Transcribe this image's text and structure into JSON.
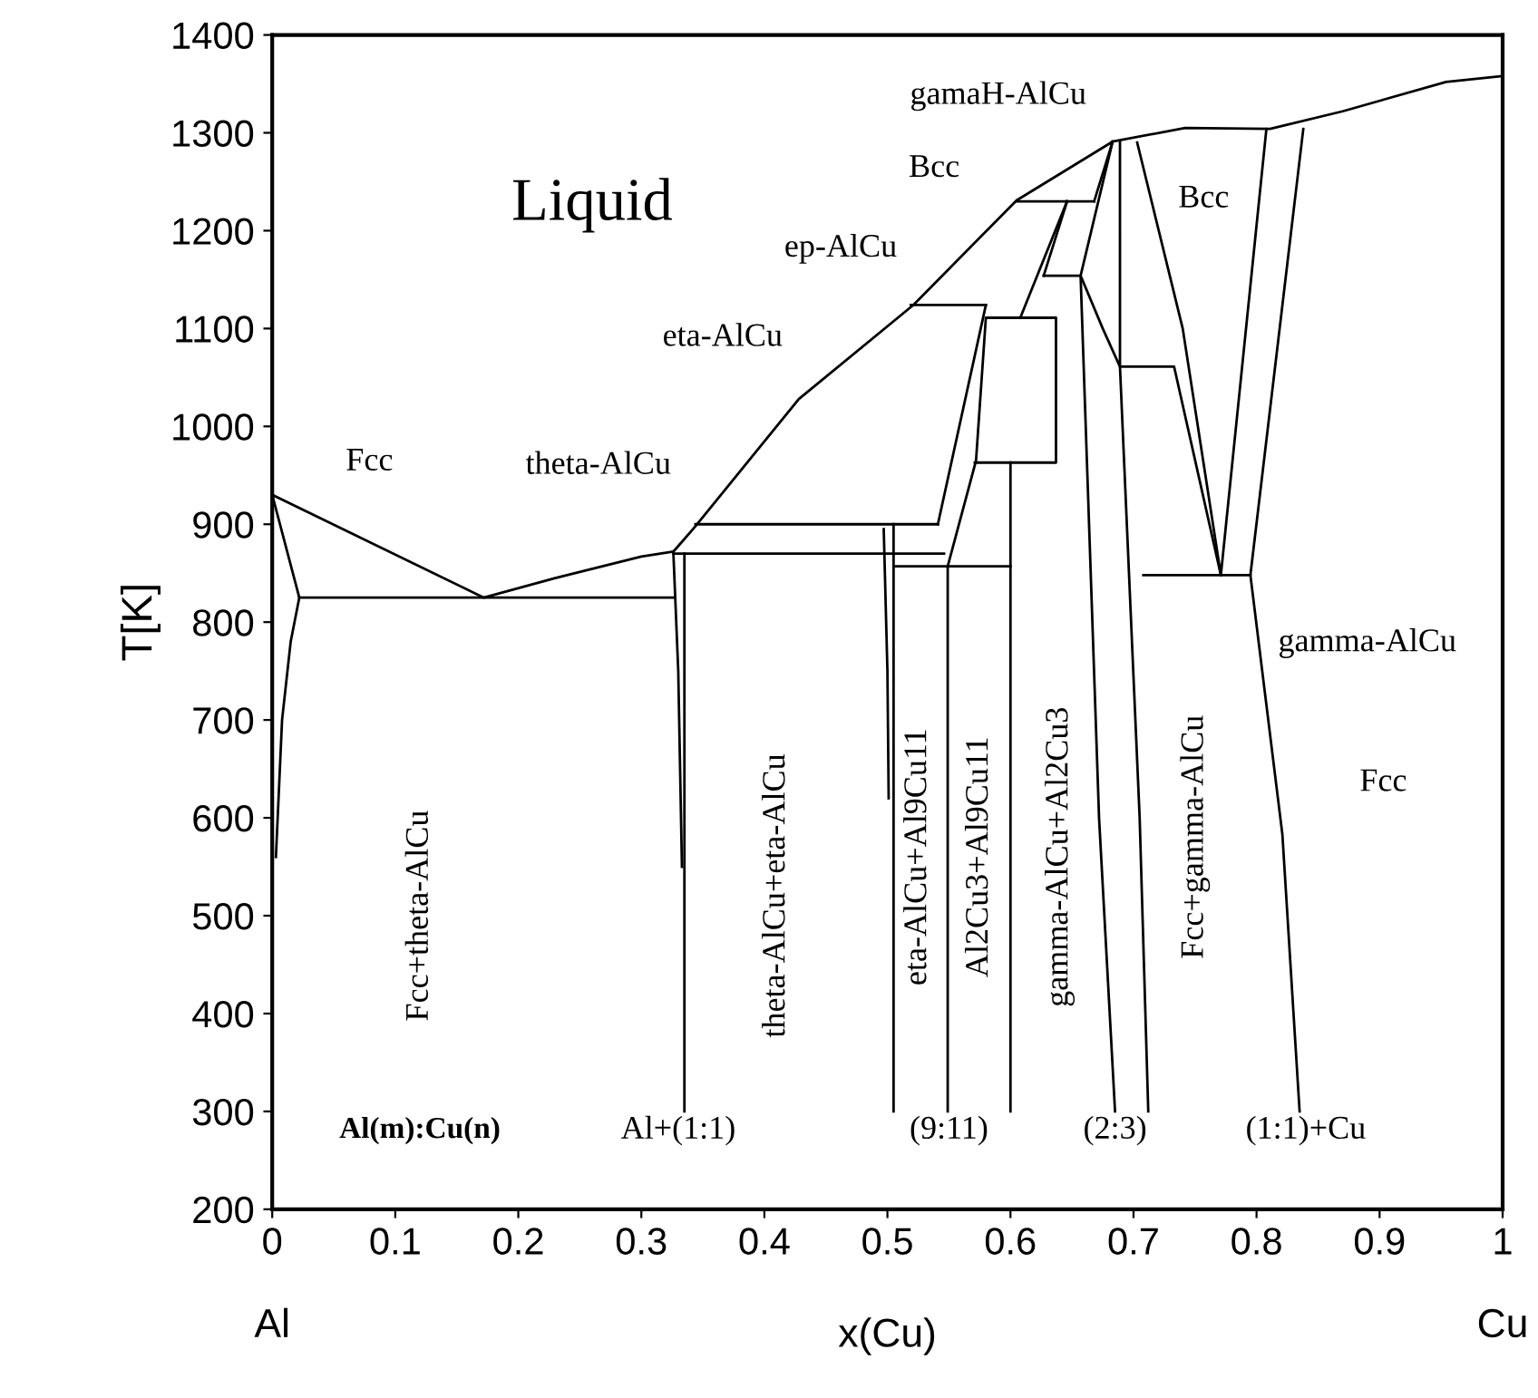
{
  "chart_data": {
    "type": "line",
    "xlabel": "x(Cu)",
    "ylabel": "T[K]",
    "xlim": [
      0,
      1
    ],
    "ylim": [
      200,
      1400
    ],
    "xticks": [
      0,
      0.1,
      0.2,
      0.3,
      0.4,
      0.5,
      0.6,
      0.7,
      0.8,
      0.9,
      1
    ],
    "yticks": [
      200,
      300,
      400,
      500,
      600,
      700,
      800,
      900,
      1000,
      1100,
      1200,
      1300,
      1400
    ],
    "marker": "none",
    "line_style": "solid",
    "series": [
      {
        "color": "#000000",
        "x": [
          0.003,
          0.008,
          0.015,
          0.022,
          0,
          0.172,
          0.23,
          0.3,
          0.326,
          0.344,
          0.428,
          0.521,
          0.605,
          0.683,
          0.742,
          0.811,
          0.87,
          0.954,
          1.0
        ],
        "values": [
          560,
          700,
          780,
          825,
          930,
          825,
          845,
          867,
          872,
          898,
          1028,
          1124,
          1231,
          1291,
          1305,
          1304,
          1322,
          1352,
          1358
        ]
      },
      {
        "color": "#000000",
        "x": [
          0.022,
          0.326
        ],
        "values": [
          825,
          825
        ]
      },
      {
        "color": "#000000",
        "x": [
          0.326,
          0.33,
          0.333
        ],
        "values": [
          872,
          750,
          550
        ]
      },
      {
        "color": "#000000",
        "x": [
          0.335,
          0.335
        ],
        "values": [
          870,
          300
        ]
      },
      {
        "color": "#000000",
        "x": [
          0.326,
          0.546
        ],
        "values": [
          870,
          870
        ]
      },
      {
        "color": "#000000",
        "x": [
          0.344,
          0.541
        ],
        "values": [
          900,
          900
        ]
      },
      {
        "color": "#000000",
        "x": [
          0.497,
          0.5,
          0.501
        ],
        "values": [
          895,
          750,
          620
        ]
      },
      {
        "color": "#000000",
        "x": [
          0.505,
          0.505
        ],
        "values": [
          900,
          300
        ]
      },
      {
        "color": "#000000",
        "x": [
          0.505,
          0.6
        ],
        "values": [
          857,
          857
        ]
      },
      {
        "color": "#000000",
        "x": [
          0.549,
          0.549,
          0.572,
          0.58,
          0.637,
          0.637,
          0.571
        ],
        "values": [
          300,
          857,
          965,
          1111,
          1111,
          963,
          963
        ]
      },
      {
        "color": "#000000",
        "x": [
          0.6,
          0.6
        ],
        "values": [
          963,
          300
        ]
      },
      {
        "color": "#000000",
        "x": [
          0.541,
          0.58
        ],
        "values": [
          900,
          1124
        ]
      },
      {
        "color": "#000000",
        "x": [
          0.519,
          0.58
        ],
        "values": [
          1124,
          1124
        ]
      },
      {
        "color": "#000000",
        "x": [
          0.605,
          0.668
        ],
        "values": [
          1230,
          1230
        ]
      },
      {
        "color": "#000000",
        "x": [
          0.608,
          0.646
        ],
        "values": [
          1111,
          1230
        ]
      },
      {
        "color": "#000000",
        "x": [
          0.627,
          0.646
        ],
        "values": [
          1154,
          1230
        ]
      },
      {
        "color": "#000000",
        "x": [
          0.668,
          0.683
        ],
        "values": [
          1230,
          1291
        ]
      },
      {
        "color": "#000000",
        "x": [
          0.685,
          0.672,
          0.657,
          0.683
        ],
        "values": [
          300,
          600,
          1154,
          1291
        ]
      },
      {
        "color": "#000000",
        "x": [
          0.627,
          0.657,
          0.675,
          0.689,
          0.689
        ],
        "values": [
          1154,
          1154,
          1100,
          1061,
          1291
        ]
      },
      {
        "color": "#000000",
        "x": [
          0.712,
          0.705,
          0.689,
          0.733,
          0.771
        ],
        "values": [
          300,
          600,
          1061,
          1061,
          848
        ]
      },
      {
        "color": "#000000",
        "x": [
          0.708,
          0.795
        ],
        "values": [
          848,
          848
        ]
      },
      {
        "color": "#000000",
        "x": [
          0.703,
          0.74,
          0.771,
          0.808
        ],
        "values": [
          1290,
          1100,
          848,
          1304
        ]
      },
      {
        "color": "#000000",
        "x": [
          0.838,
          0.795,
          0.821,
          0.835
        ],
        "values": [
          1304,
          848,
          583,
          300
        ]
      }
    ],
    "annotations": [
      "Liquid",
      "Fcc",
      "theta-AlCu",
      "eta-AlCu",
      "ep-AlCu",
      "Bcc",
      "gamaH-AlCu",
      "Bcc",
      "gamma-AlCu",
      "Fcc",
      "Fcc+theta-AlCu",
      "theta-AlCu+eta-AlCu",
      "eta-AlCu+Al9Cu11",
      "Al2Cu3+Al9Cu11",
      "gamma-AlCu+Al2Cu3",
      "Fcc+gamma-AlCu",
      "Al(m):Cu(n)",
      "Al+(1:1)",
      "(9:11)",
      "(2:3)",
      "(1:1)+Cu",
      "Al",
      "Cu"
    ]
  }
}
